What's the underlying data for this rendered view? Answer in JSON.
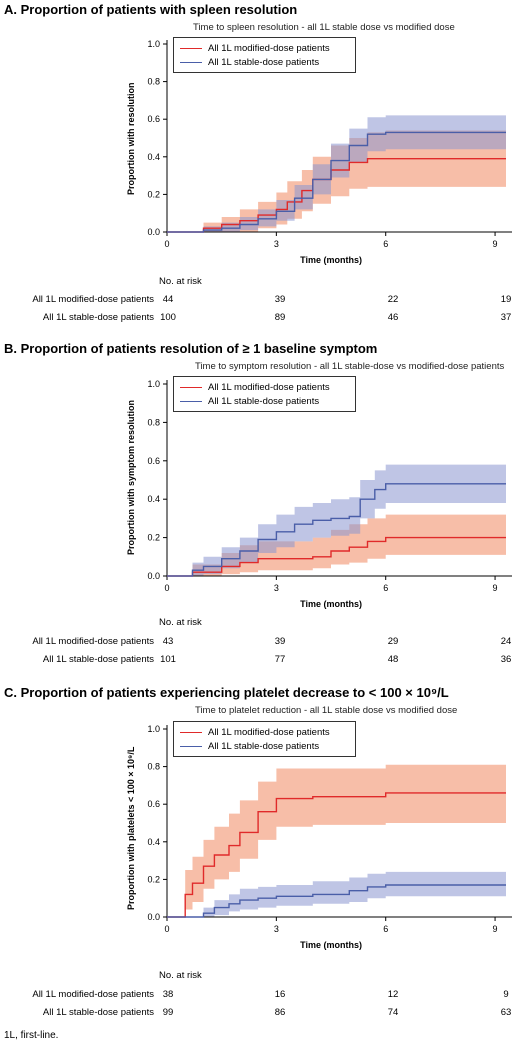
{
  "colors": {
    "modified": "#e02a2a",
    "modified_band": "#f4a383",
    "stable": "#4a5ea8",
    "stable_band": "#8b95cf"
  },
  "x_ticks": [
    "0",
    "3",
    "6",
    "9"
  ],
  "y_ticks": [
    "0.0",
    "0.2",
    "0.4",
    "0.6",
    "0.8",
    "1.0"
  ],
  "xlabel": "Time (months)",
  "risk_header": "No. at risk",
  "footnote": "1L, first-line.",
  "panels": [
    {
      "title": "A. Proportion of patients with spleen resolution",
      "subtitle": "Time to spleen resolution - all 1L stable dose vs modified dose",
      "ylabel": "Proportion with resolution",
      "legend": [
        "All 1L modified-dose patients",
        "All 1L stable-dose patients"
      ],
      "risk": [
        {
          "label": "All 1L modified-dose patients",
          "values": [
            "44",
            "39",
            "22",
            "19"
          ]
        },
        {
          "label": "All 1L stable-dose patients",
          "values": [
            "100",
            "89",
            "46",
            "37"
          ]
        }
      ]
    },
    {
      "title": "B. Proportion of patients resolution of ≥ 1 baseline symptom",
      "subtitle": "Time to symptom resolution - all 1L stable-dose vs modified-dose patients",
      "ylabel": "Proportion with symptom resolution",
      "legend": [
        "All 1L modified-dose patients",
        "All 1L stable-dose patients"
      ],
      "risk": [
        {
          "label": "All 1L modified-dose patients",
          "values": [
            "43",
            "39",
            "29",
            "24"
          ]
        },
        {
          "label": "All 1L stable-dose patients",
          "values": [
            "101",
            "77",
            "48",
            "36"
          ]
        }
      ]
    },
    {
      "title": "C. Proportion of patients experiencing platelet decrease to < 100 × 10⁹/L",
      "subtitle": "Time to platelet reduction - all 1L stable dose vs modified dose",
      "ylabel": "Proportion with platelets < 100 × 10⁹/L",
      "legend": [
        "All 1L modified-dose patients",
        "All 1L stable-dose patients"
      ],
      "risk": [
        {
          "label": "All 1L modified-dose patients",
          "values": [
            "38",
            "16",
            "12",
            "9"
          ]
        },
        {
          "label": "All 1L stable-dose patients",
          "values": [
            "99",
            "86",
            "74",
            "63"
          ]
        }
      ]
    }
  ],
  "chart_data": [
    {
      "type": "line",
      "title": "A. Proportion of patients with spleen resolution",
      "subtitle": "Time to spleen resolution - all 1L stable dose vs modified dose",
      "xlabel": "Time (months)",
      "ylabel": "Proportion with resolution",
      "xlim": [
        0,
        9.3
      ],
      "ylim": [
        0,
        1.0
      ],
      "legend_position": "top-left",
      "series": [
        {
          "name": "All 1L modified-dose patients",
          "x": [
            0,
            1.0,
            1.5,
            2.0,
            2.5,
            3.0,
            3.3,
            3.7,
            4.0,
            4.5,
            5.0,
            5.5,
            6.0,
            9.3
          ],
          "y": [
            0,
            0.02,
            0.04,
            0.06,
            0.09,
            0.12,
            0.16,
            0.22,
            0.28,
            0.33,
            0.37,
            0.39,
            0.39,
            0.39
          ],
          "lower": [
            0,
            0.0,
            0.0,
            0.0,
            0.02,
            0.04,
            0.07,
            0.11,
            0.15,
            0.19,
            0.23,
            0.24,
            0.24,
            0.24
          ],
          "upper": [
            0,
            0.05,
            0.08,
            0.12,
            0.16,
            0.21,
            0.27,
            0.33,
            0.4,
            0.46,
            0.5,
            0.53,
            0.54,
            0.54
          ]
        },
        {
          "name": "All 1L stable-dose patients",
          "x": [
            0,
            1.0,
            1.5,
            2.0,
            2.5,
            3.0,
            3.5,
            4.0,
            4.5,
            5.0,
            5.5,
            6.0,
            9.3
          ],
          "y": [
            0,
            0.01,
            0.02,
            0.04,
            0.07,
            0.11,
            0.18,
            0.28,
            0.38,
            0.46,
            0.52,
            0.53,
            0.53
          ],
          "lower": [
            0,
            0.0,
            0.0,
            0.01,
            0.03,
            0.06,
            0.12,
            0.2,
            0.29,
            0.37,
            0.43,
            0.44,
            0.44
          ],
          "upper": [
            0,
            0.03,
            0.05,
            0.08,
            0.12,
            0.17,
            0.25,
            0.36,
            0.47,
            0.55,
            0.61,
            0.62,
            0.62
          ]
        }
      ]
    },
    {
      "type": "line",
      "title": "B. Proportion of patients resolution of ≥ 1 baseline symptom",
      "subtitle": "Time to symptom resolution - all 1L stable-dose vs modified-dose patients",
      "xlabel": "Time (months)",
      "ylabel": "Proportion with symptom resolution",
      "xlim": [
        0,
        9.3
      ],
      "ylim": [
        0,
        1.0
      ],
      "legend_position": "top-left",
      "series": [
        {
          "name": "All 1L modified-dose patients",
          "x": [
            0,
            0.7,
            1.0,
            1.5,
            2.0,
            2.5,
            3.0,
            4.0,
            4.5,
            5.0,
            5.5,
            6.0,
            9.3
          ],
          "y": [
            0,
            0.02,
            0.02,
            0.05,
            0.07,
            0.09,
            0.09,
            0.1,
            0.13,
            0.15,
            0.18,
            0.2,
            0.2
          ],
          "lower": [
            0,
            0.0,
            0.0,
            0.01,
            0.02,
            0.03,
            0.03,
            0.04,
            0.06,
            0.07,
            0.09,
            0.11,
            0.11
          ],
          "upper": [
            0,
            0.06,
            0.06,
            0.12,
            0.16,
            0.18,
            0.18,
            0.2,
            0.24,
            0.27,
            0.3,
            0.32,
            0.32
          ]
        },
        {
          "name": "All 1L stable-dose patients",
          "x": [
            0,
            0.7,
            1.0,
            1.5,
            2.0,
            2.5,
            3.0,
            3.5,
            4.0,
            4.5,
            5.0,
            5.3,
            5.7,
            6.0,
            9.3
          ],
          "y": [
            0,
            0.03,
            0.05,
            0.09,
            0.13,
            0.19,
            0.23,
            0.27,
            0.29,
            0.3,
            0.31,
            0.4,
            0.45,
            0.48,
            0.48
          ],
          "lower": [
            0,
            0.0,
            0.01,
            0.04,
            0.07,
            0.12,
            0.15,
            0.18,
            0.2,
            0.21,
            0.22,
            0.3,
            0.35,
            0.38,
            0.38
          ],
          "upper": [
            0,
            0.07,
            0.1,
            0.15,
            0.2,
            0.27,
            0.32,
            0.36,
            0.38,
            0.4,
            0.41,
            0.5,
            0.55,
            0.58,
            0.58
          ]
        }
      ]
    },
    {
      "type": "line",
      "title": "C. Proportion of patients experiencing platelet decrease to < 100 × 10⁹/L",
      "subtitle": "Time to platelet reduction - all 1L stable dose vs modified dose",
      "xlabel": "Time (months)",
      "ylabel": "Proportion with platelets < 100 × 10⁹/L",
      "xlim": [
        0,
        9.3
      ],
      "ylim": [
        0,
        1.0
      ],
      "legend_position": "top-left",
      "series": [
        {
          "name": "All 1L modified-dose patients",
          "x": [
            0,
            0.45,
            0.5,
            0.7,
            1.0,
            1.3,
            1.7,
            2.0,
            2.5,
            3.0,
            4.0,
            5.0,
            6.0,
            9.3
          ],
          "y": [
            0,
            0,
            0.12,
            0.18,
            0.27,
            0.33,
            0.38,
            0.45,
            0.56,
            0.63,
            0.64,
            0.64,
            0.66,
            0.66
          ],
          "lower": [
            0,
            0,
            0.04,
            0.08,
            0.15,
            0.2,
            0.24,
            0.31,
            0.41,
            0.48,
            0.49,
            0.49,
            0.5,
            0.5
          ],
          "upper": [
            0,
            0,
            0.25,
            0.32,
            0.41,
            0.48,
            0.55,
            0.62,
            0.72,
            0.79,
            0.79,
            0.79,
            0.81,
            0.81
          ]
        },
        {
          "name": "All 1L stable-dose patients",
          "x": [
            0,
            0.9,
            1.0,
            1.3,
            1.7,
            2.0,
            2.5,
            3.0,
            4.0,
            5.0,
            5.5,
            6.0,
            9.3
          ],
          "y": [
            0,
            0,
            0.02,
            0.05,
            0.07,
            0.09,
            0.1,
            0.11,
            0.12,
            0.14,
            0.16,
            0.17,
            0.17
          ],
          "lower": [
            0,
            0,
            0.0,
            0.01,
            0.03,
            0.04,
            0.05,
            0.06,
            0.07,
            0.08,
            0.1,
            0.11,
            0.11
          ],
          "upper": [
            0,
            0,
            0.05,
            0.09,
            0.12,
            0.15,
            0.16,
            0.17,
            0.19,
            0.21,
            0.23,
            0.24,
            0.24
          ]
        }
      ]
    }
  ]
}
